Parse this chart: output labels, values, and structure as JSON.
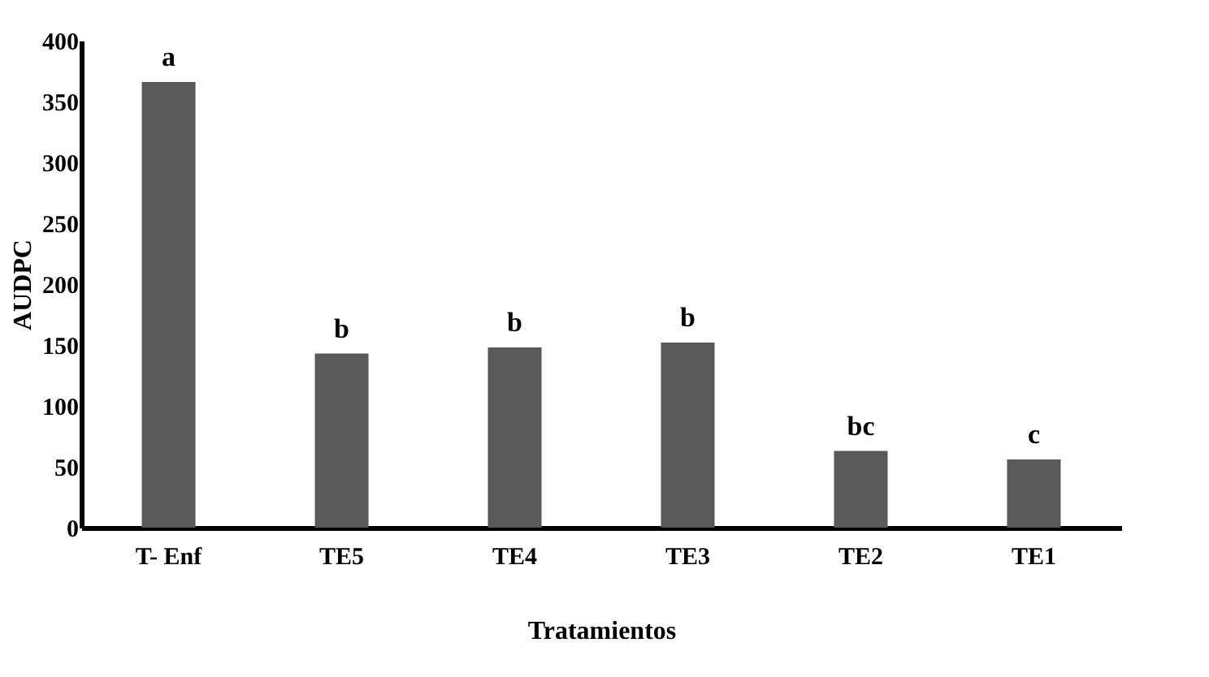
{
  "chart_data": {
    "type": "bar",
    "xlabel": "Tratamientos",
    "ylabel": "AUDPC",
    "categories": [
      "T- Enf",
      "TE5",
      "TE4",
      "TE3",
      "TE2",
      "TE1"
    ],
    "values": [
      366,
      143,
      148,
      152,
      63,
      56
    ],
    "color": "#595959",
    "ylim": [
      0,
      400
    ],
    "yticks": [
      0,
      50,
      100,
      150,
      200,
      250,
      300,
      350,
      400
    ],
    "grid": false,
    "annotations": [
      "a",
      "b",
      "b",
      "b",
      "bc",
      "c"
    ]
  }
}
